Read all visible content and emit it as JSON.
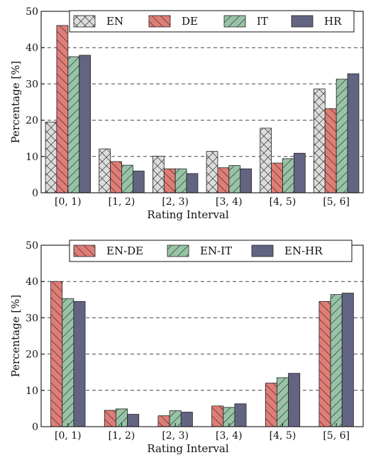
{
  "colors": {
    "EN": "#dcdcdc",
    "DE": "#e07d76",
    "IT": "#97c4a6",
    "HR": "#626482",
    "grid": "#444444"
  },
  "chart_data": [
    {
      "type": "bar",
      "categories": [
        "[0, 1)",
        "[1, 2)",
        "[2, 3)",
        "[3, 4)",
        "[4, 5)",
        "[5, 6]"
      ],
      "series": [
        {
          "name": "EN",
          "values": [
            19.5,
            12.1,
            10.1,
            11.4,
            17.8,
            28.6
          ],
          "color": "EN",
          "hatch": "cross"
        },
        {
          "name": "DE",
          "values": [
            46.1,
            8.6,
            6.6,
            6.9,
            8.2,
            23.2
          ],
          "color": "DE",
          "hatch": "back"
        },
        {
          "name": "IT",
          "values": [
            37.5,
            7.6,
            6.6,
            7.5,
            9.4,
            31.3
          ],
          "color": "IT",
          "hatch": "fwd"
        },
        {
          "name": "HR",
          "values": [
            37.9,
            6.0,
            5.3,
            6.6,
            10.9,
            32.8
          ],
          "color": "HR",
          "hatch": "none"
        }
      ],
      "xlabel": "Rating Interval",
      "ylabel": "Percentage [%]",
      "ylim": [
        0,
        50
      ],
      "yticks": [
        0,
        10,
        20,
        30,
        40,
        50
      ],
      "grid": "horizontal dashed",
      "legend": "top"
    },
    {
      "type": "bar",
      "categories": [
        "[0, 1)",
        "[1, 2)",
        "[2, 3)",
        "[3, 4)",
        "[4, 5)",
        "[5, 6]"
      ],
      "series": [
        {
          "name": "EN-DE",
          "values": [
            40.0,
            4.5,
            3.0,
            5.7,
            12.0,
            34.5
          ],
          "color": "DE",
          "hatch": "back"
        },
        {
          "name": "EN-IT",
          "values": [
            35.3,
            4.9,
            4.4,
            5.3,
            13.5,
            36.4
          ],
          "color": "IT",
          "hatch": "fwd"
        },
        {
          "name": "EN-HR",
          "values": [
            34.5,
            3.4,
            4.0,
            6.3,
            14.7,
            36.8
          ],
          "color": "HR",
          "hatch": "none"
        }
      ],
      "xlabel": "Rating Interval",
      "ylabel": "Percentage [%]",
      "ylim": [
        0,
        50
      ],
      "yticks": [
        0,
        10,
        20,
        30,
        40,
        50
      ],
      "grid": "horizontal dashed",
      "legend": "top"
    }
  ]
}
